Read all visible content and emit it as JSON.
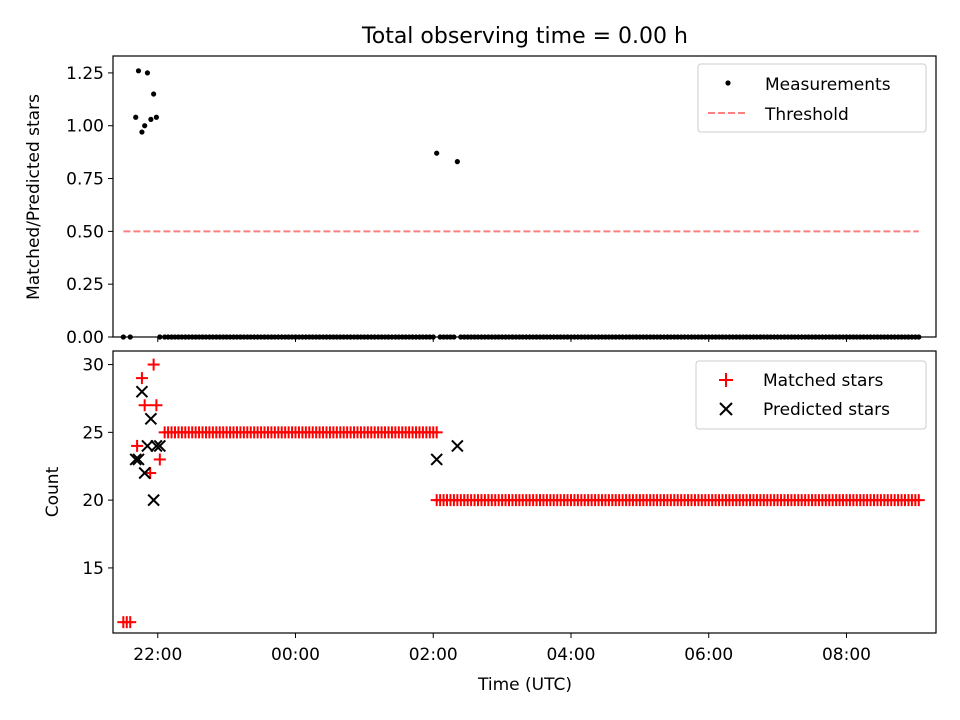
{
  "figure": {
    "title": "Total observing time = 0.00 h",
    "xlabel": "Time (UTC)",
    "xticks": [
      {
        "label": "22:00",
        "t": 22.0
      },
      {
        "label": "00:00",
        "t": 24.0
      },
      {
        "label": "02:00",
        "t": 26.0
      },
      {
        "label": "04:00",
        "t": 28.0
      },
      {
        "label": "06:00",
        "t": 30.0
      },
      {
        "label": "08:00",
        "t": 32.0
      }
    ],
    "xlim": [
      21.35,
      33.3
    ]
  },
  "chart_data": [
    {
      "type": "scatter",
      "title": "Total observing time = 0.00 h",
      "xlabel": "Time (UTC)",
      "ylabel": "Matched/Predicted stars",
      "ylim": [
        0,
        1.33
      ],
      "yticks": [
        "0.00",
        "0.25",
        "0.50",
        "0.75",
        "1.00",
        "1.25"
      ],
      "legend": "top-right",
      "series": [
        {
          "name": "Measurements",
          "kind": "points",
          "color": "#000000",
          "x": [
            21.5,
            21.6,
            21.68,
            21.72,
            21.77,
            21.81,
            21.85,
            21.9,
            21.94,
            21.98,
            22.03,
            26.05,
            26.35
          ],
          "y": [
            0.0,
            0.0,
            1.04,
            1.26,
            0.97,
            1.0,
            1.25,
            1.03,
            1.15,
            1.04,
            0.0,
            0.87,
            0.83
          ],
          "zero_runs": [
            {
              "start": 22.1,
              "end": 26.0,
              "step": 0.05
            },
            {
              "start": 26.1,
              "end": 26.3,
              "step": 0.05
            },
            {
              "start": 26.4,
              "end": 33.05,
              "step": 0.05
            }
          ]
        },
        {
          "name": "Threshold",
          "kind": "dashed-line",
          "color": "#ff7f7f",
          "x": [
            21.5,
            33.05
          ],
          "y": [
            0.5,
            0.5
          ]
        }
      ]
    },
    {
      "type": "scatter",
      "xlabel": "Time (UTC)",
      "ylabel": "Count",
      "ylim": [
        10.2,
        31.0
      ],
      "yticks": [
        "15",
        "20",
        "25",
        "30"
      ],
      "legend": "top-right",
      "series": [
        {
          "name": "Matched stars",
          "kind": "plus",
          "color": "#ff0000",
          "x": [
            21.5,
            21.55,
            21.6,
            21.7,
            21.77,
            21.81,
            21.89,
            21.94,
            21.98,
            22.03
          ],
          "y": [
            11,
            11,
            11,
            24,
            29,
            27,
            22,
            30,
            27,
            23
          ],
          "runs": [
            {
              "start": 22.1,
              "end": 26.05,
              "step": 0.05,
              "y": 25
            },
            {
              "start": 26.05,
              "end": 33.05,
              "step": 0.05,
              "y": 20
            }
          ]
        },
        {
          "name": "Predicted stars",
          "kind": "cross",
          "color": "#000000",
          "x": [
            21.68,
            21.72,
            21.77,
            21.81,
            21.85,
            21.9,
            21.94,
            21.98,
            22.03,
            26.05,
            26.35
          ],
          "y": [
            23,
            23,
            28,
            22,
            24,
            26,
            20,
            24,
            24,
            23,
            24
          ]
        }
      ]
    }
  ]
}
